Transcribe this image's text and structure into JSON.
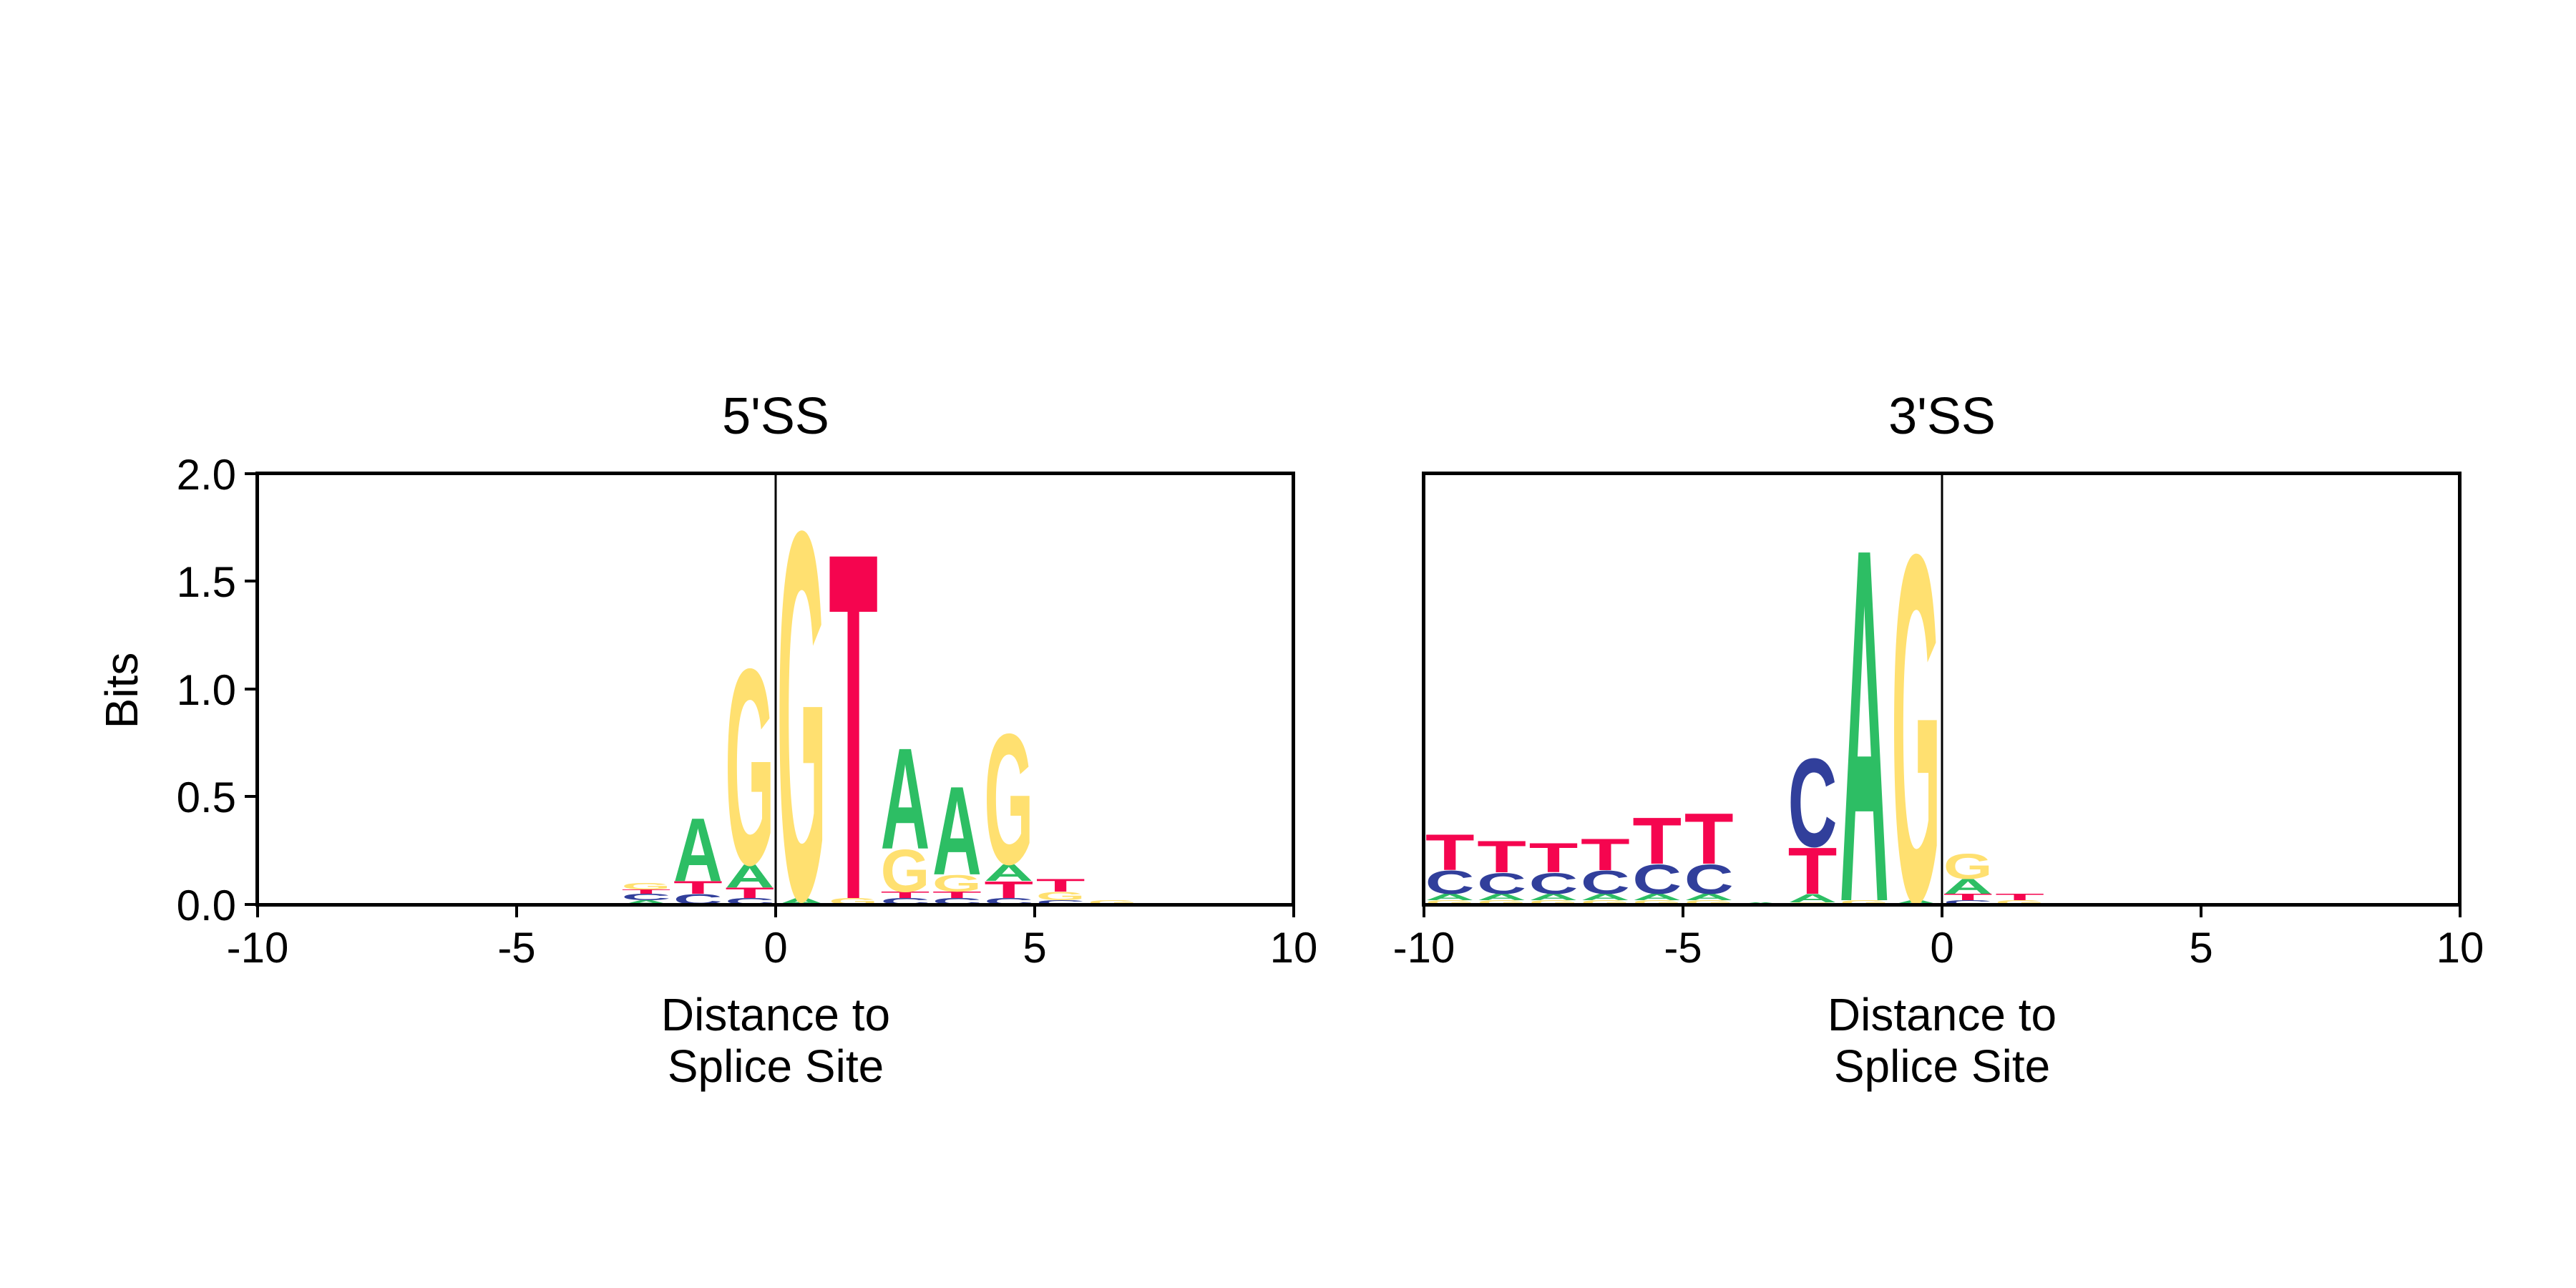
{
  "colors": {
    "A": "#2dbe64",
    "C": "#313f9b",
    "G": "#ffe070",
    "T": "#f5054f",
    "axis": "#000000"
  },
  "chart_data": [
    {
      "type": "sequence-logo",
      "title": "5'SS",
      "xlabel": [
        "Distance to",
        "Splice Site"
      ],
      "ylabel": "Bits",
      "xlim": [
        -10,
        10
      ],
      "ylim": [
        0,
        2.0
      ],
      "xticks": [
        "-10",
        "-5",
        "0",
        "5",
        "10"
      ],
      "yticks": [
        "0.0",
        "0.5",
        "1.0",
        "1.5",
        "2.0"
      ],
      "splice_site_line": 0,
      "positions": [
        {
          "x": -2.5,
          "stack": [
            [
              "A",
              0.02
            ],
            [
              "C",
              0.03
            ],
            [
              "T",
              0.02
            ],
            [
              "G",
              0.03
            ]
          ]
        },
        {
          "x": -1.5,
          "stack": [
            [
              "C",
              0.05
            ],
            [
              "T",
              0.06
            ],
            [
              "A",
              0.3
            ]
          ]
        },
        {
          "x": -0.5,
          "stack": [
            [
              "C",
              0.03
            ],
            [
              "T",
              0.05
            ],
            [
              "A",
              0.11
            ],
            [
              "G",
              0.93
            ]
          ]
        },
        {
          "x": 0.5,
          "stack": [
            [
              "A",
              0.03
            ],
            [
              "G",
              1.75
            ]
          ]
        },
        {
          "x": 1.5,
          "stack": [
            [
              "G",
              0.03
            ],
            [
              "T",
              1.65
            ]
          ]
        },
        {
          "x": 2.5,
          "stack": [
            [
              "C",
              0.03
            ],
            [
              "T",
              0.03
            ],
            [
              "G",
              0.2
            ],
            [
              "A",
              0.48
            ]
          ]
        },
        {
          "x": 3.5,
          "stack": [
            [
              "C",
              0.03
            ],
            [
              "T",
              0.03
            ],
            [
              "G",
              0.08
            ],
            [
              "A",
              0.42
            ]
          ]
        },
        {
          "x": 4.5,
          "stack": [
            [
              "C",
              0.03
            ],
            [
              "T",
              0.08
            ],
            [
              "A",
              0.08
            ],
            [
              "G",
              0.62
            ]
          ]
        },
        {
          "x": 5.5,
          "stack": [
            [
              "C",
              0.02
            ],
            [
              "G",
              0.04
            ],
            [
              "T",
              0.06
            ]
          ]
        },
        {
          "x": 6.5,
          "stack": [
            [
              "G",
              0.02
            ]
          ]
        }
      ]
    },
    {
      "type": "sequence-logo",
      "title": "3'SS",
      "xlabel": [
        "Distance to",
        "Splice Site"
      ],
      "ylabel": "",
      "xlim": [
        -10,
        10
      ],
      "ylim": [
        0,
        2.0
      ],
      "xticks": [
        "-10",
        "-5",
        "0",
        "5",
        "10"
      ],
      "yticks": [],
      "splice_site_line": 0,
      "positions": [
        {
          "x": -9.5,
          "stack": [
            [
              "G",
              0.02
            ],
            [
              "A",
              0.03
            ],
            [
              "C",
              0.11
            ],
            [
              "T",
              0.17
            ]
          ]
        },
        {
          "x": -8.5,
          "stack": [
            [
              "G",
              0.02
            ],
            [
              "A",
              0.03
            ],
            [
              "C",
              0.1
            ],
            [
              "T",
              0.15
            ]
          ]
        },
        {
          "x": -7.5,
          "stack": [
            [
              "G",
              0.02
            ],
            [
              "A",
              0.03
            ],
            [
              "C",
              0.1
            ],
            [
              "T",
              0.14
            ]
          ]
        },
        {
          "x": -6.5,
          "stack": [
            [
              "G",
              0.02
            ],
            [
              "A",
              0.03
            ],
            [
              "C",
              0.11
            ],
            [
              "T",
              0.15
            ]
          ]
        },
        {
          "x": -5.5,
          "stack": [
            [
              "G",
              0.02
            ],
            [
              "A",
              0.03
            ],
            [
              "C",
              0.14
            ],
            [
              "T",
              0.22
            ]
          ]
        },
        {
          "x": -4.5,
          "stack": [
            [
              "G",
              0.02
            ],
            [
              "A",
              0.03
            ],
            [
              "C",
              0.14
            ],
            [
              "T",
              0.24
            ]
          ]
        },
        {
          "x": -3.5,
          "stack": [
            [
              "A",
              0.01
            ]
          ]
        },
        {
          "x": -2.5,
          "stack": [
            [
              "G",
              0.01
            ],
            [
              "A",
              0.04
            ],
            [
              "T",
              0.22
            ],
            [
              "C",
              0.42
            ]
          ]
        },
        {
          "x": -1.5,
          "stack": [
            [
              "G",
              0.02
            ],
            [
              "A",
              1.68
            ]
          ]
        },
        {
          "x": -0.5,
          "stack": [
            [
              "A",
              0.02
            ],
            [
              "G",
              1.65
            ]
          ]
        },
        {
          "x": 0.5,
          "stack": [
            [
              "C",
              0.02
            ],
            [
              "T",
              0.03
            ],
            [
              "A",
              0.07
            ],
            [
              "G",
              0.12
            ]
          ]
        },
        {
          "x": 1.5,
          "stack": [
            [
              "G",
              0.02
            ],
            [
              "T",
              0.03
            ]
          ]
        }
      ]
    }
  ]
}
